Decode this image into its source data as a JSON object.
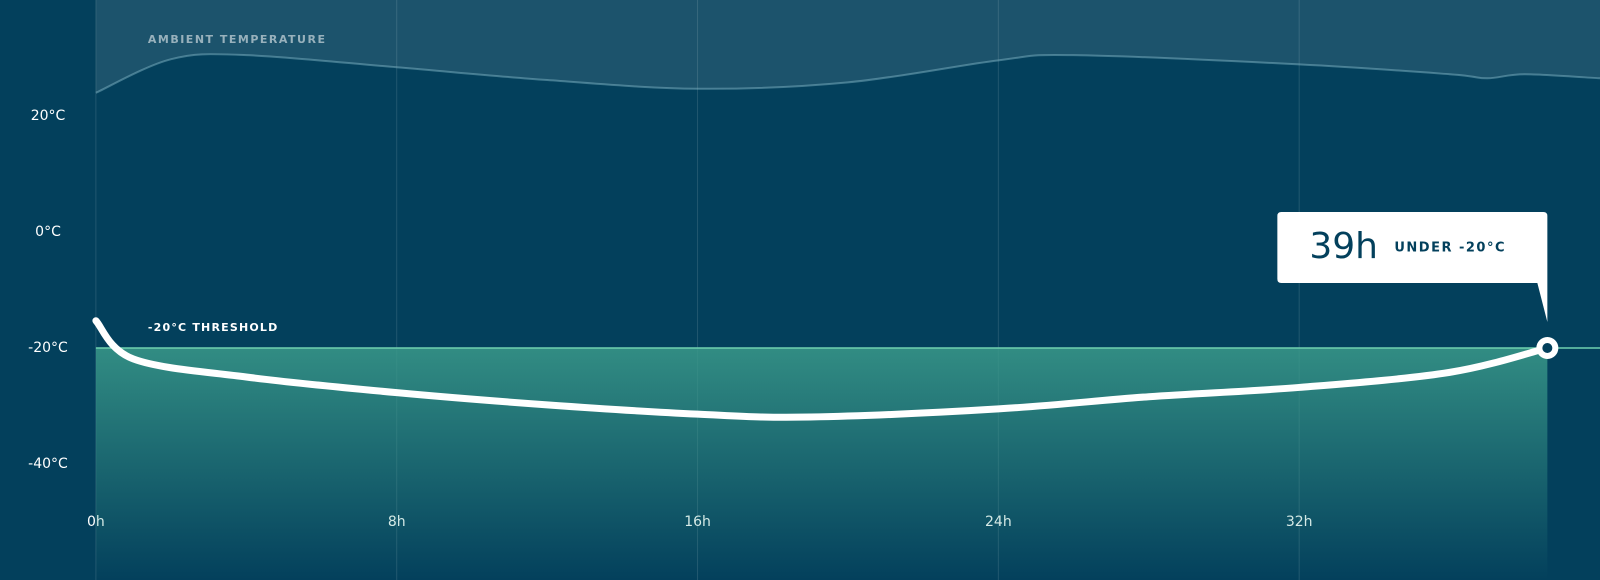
{
  "chart_data": {
    "type": "line",
    "background": "#03405c",
    "xlim": [
      -2.55,
      40
    ],
    "ylim": [
      -60,
      40
    ],
    "xticks": [
      {
        "value": 0,
        "label": "0h"
      },
      {
        "value": 8,
        "label": "8h"
      },
      {
        "value": 16,
        "label": "16h"
      },
      {
        "value": 24,
        "label": "24h"
      },
      {
        "value": 32,
        "label": "32h"
      }
    ],
    "yticks": [
      {
        "value": 20,
        "label": "20°C"
      },
      {
        "value": 0,
        "label": "0°C"
      },
      {
        "value": -20,
        "label": "-20°C"
      },
      {
        "value": -40,
        "label": "-40°C"
      }
    ],
    "grid": true,
    "series": [
      {
        "name": "AMBIENT TEMPERATURE",
        "color": "#7fb3c4",
        "x": [
          0,
          2,
          4,
          8,
          12,
          16,
          20,
          24,
          26,
          32,
          36,
          37,
          38,
          40
        ],
        "values": [
          24,
          29.8,
          30.5,
          28.4,
          26.2,
          24.7,
          25.8,
          29.6,
          30.5,
          28.9,
          27.2,
          26.5,
          27.2,
          26.5
        ]
      },
      {
        "color": "#ffffff",
        "x": [
          0,
          1,
          4,
          8,
          12,
          16,
          19,
          24,
          28,
          32,
          36,
          38.6
        ],
        "values": [
          -15.3,
          -21.9,
          -25,
          -27.7,
          -29.8,
          -31.4,
          -31.9,
          -30.5,
          -28.4,
          -26.8,
          -24.2,
          -20
        ]
      }
    ],
    "threshold": {
      "value": -20,
      "label": "-20°C THRESHOLD",
      "color": "#6fd1b0"
    },
    "marker": {
      "x": 38.6,
      "y": -20
    },
    "callout": {
      "duration": "39h",
      "text": "UNDER -20°C"
    }
  }
}
